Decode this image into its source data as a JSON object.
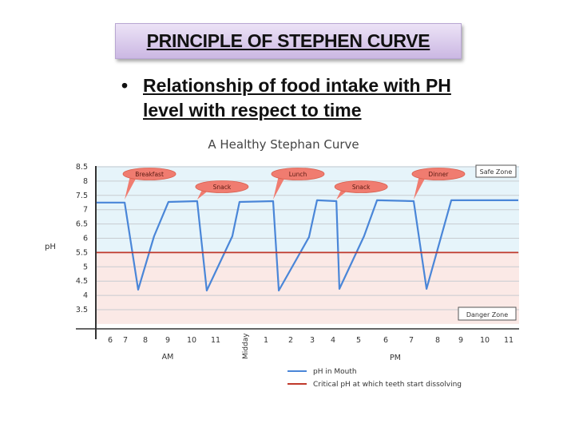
{
  "slide": {
    "title": "PRINCIPLE OF STEPHEN CURVE",
    "bullet": "Relationship of food intake with PH level with respect to time"
  },
  "chart_data": {
    "type": "line",
    "title": "A Healthy Stephan Curve",
    "ylabel": "pH",
    "xlabel": "",
    "ylim": [
      3,
      8.5
    ],
    "yticks": [
      "3.5",
      "4",
      "4.5",
      "5",
      "5.5",
      "6",
      "6.5",
      "7",
      "7.5",
      "8",
      "8.5"
    ],
    "xticks": [
      {
        "hour": 6,
        "label": "6"
      },
      {
        "hour": 7,
        "label": "7"
      },
      {
        "hour": 8,
        "label": "8"
      },
      {
        "hour": 9,
        "label": "9"
      },
      {
        "hour": 10,
        "label": "10"
      },
      {
        "hour": 11,
        "label": "11"
      },
      {
        "hour": 12,
        "label": "Midday"
      },
      {
        "hour": 13,
        "label": "1"
      },
      {
        "hour": 14,
        "label": "2"
      },
      {
        "hour": 15,
        "label": "3"
      },
      {
        "hour": 16,
        "label": "4"
      },
      {
        "hour": 17,
        "label": "5"
      },
      {
        "hour": 18,
        "label": "6"
      },
      {
        "hour": 19,
        "label": "7"
      },
      {
        "hour": 20,
        "label": "8"
      },
      {
        "hour": 21,
        "label": "9"
      },
      {
        "hour": 22,
        "label": "10"
      },
      {
        "hour": 23,
        "label": "11"
      }
    ],
    "period_labels": {
      "am": "AM",
      "pm": "PM"
    },
    "grid": true,
    "zones": {
      "safe": "Safe Zone",
      "danger": "Danger Zone"
    },
    "series": [
      {
        "name": "pH in Mouth",
        "color": "#4a86d8",
        "x": [
          5.1,
          6.95,
          7.64,
          8.39,
          9.03,
          10.23,
          10.63,
          11.58,
          11.83,
          13.29,
          13.52,
          14.85,
          15.23,
          16.13,
          16.25,
          17.2,
          17.68,
          19.09,
          19.58,
          20.59,
          23.4
        ],
        "y": [
          7.25,
          7.25,
          4.2,
          6.07,
          7.27,
          7.3,
          4.17,
          6.07,
          7.27,
          7.3,
          4.17,
          6.04,
          7.33,
          7.3,
          4.23,
          6.07,
          7.33,
          7.3,
          4.23,
          7.33,
          7.33
        ]
      },
      {
        "name": "Critical pH at which teeth start dissolving",
        "color": "#c0392b",
        "x": [
          5.1,
          23.4
        ],
        "y": [
          5.5,
          5.5
        ]
      }
    ],
    "annotations": [
      {
        "label": "Breakfast",
        "hour": 6.95,
        "level": "high"
      },
      {
        "label": "Snack",
        "hour": 10.23,
        "level": "low"
      },
      {
        "label": "Lunch",
        "hour": 13.29,
        "level": "high"
      },
      {
        "label": "Snack",
        "hour": 16.13,
        "level": "low"
      },
      {
        "label": "Dinner",
        "hour": 19.09,
        "level": "high"
      }
    ],
    "colors": {
      "safe_fill": "#e6f4fa",
      "danger_fill": "#fbe9e6",
      "callout": "#f07c70"
    },
    "legend_placement": "bottom-right"
  }
}
